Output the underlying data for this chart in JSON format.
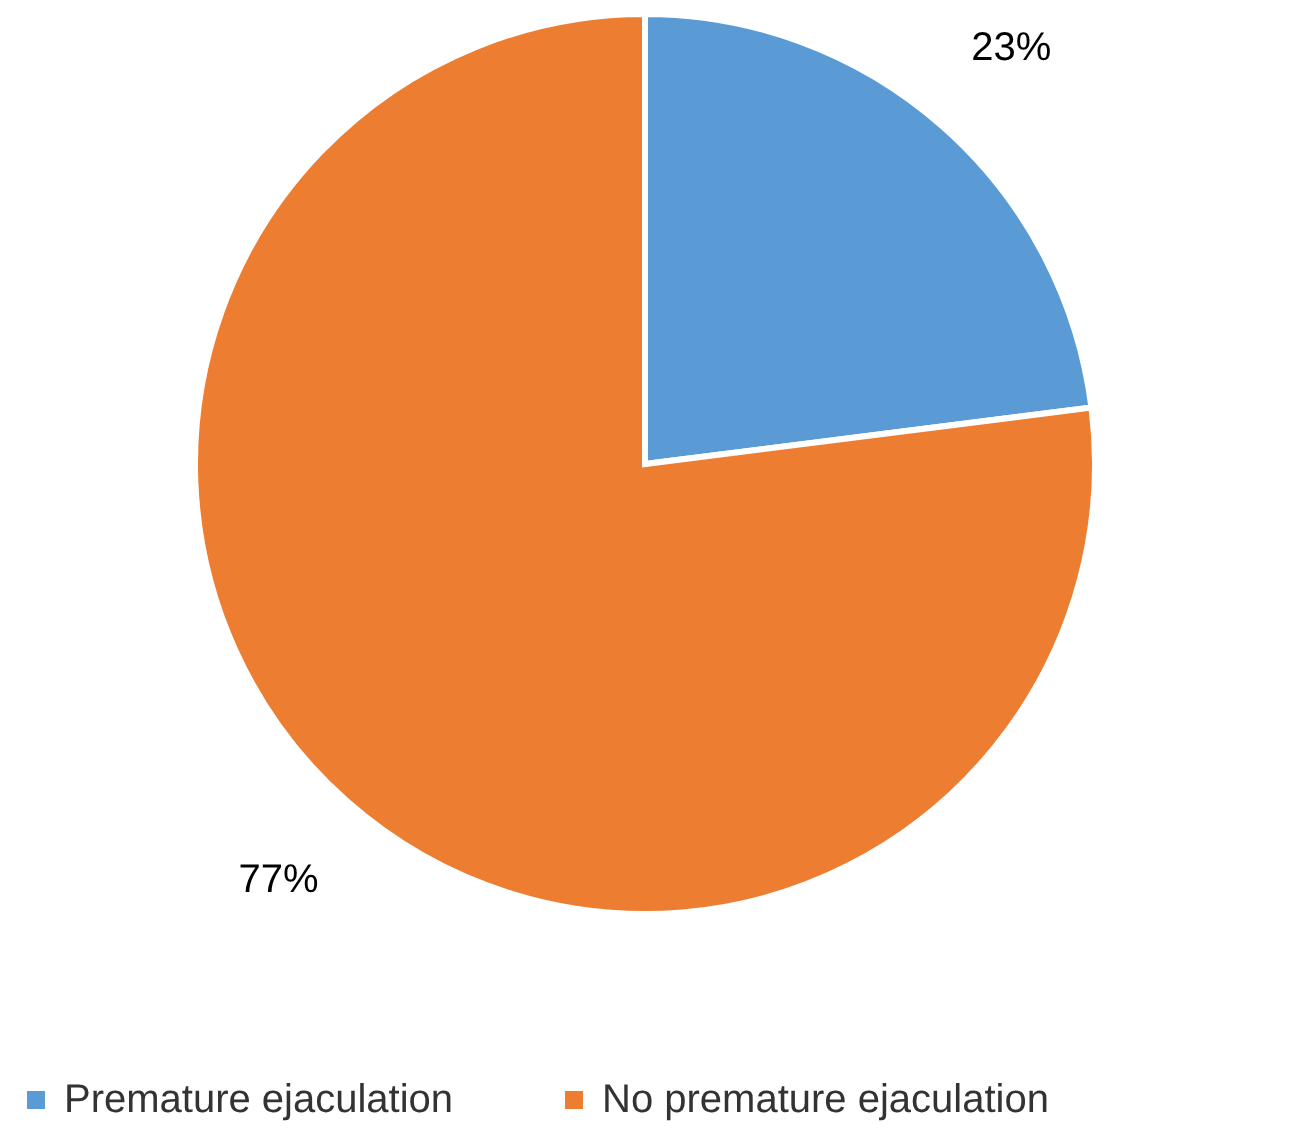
{
  "chart_data": {
    "type": "pie",
    "categories": [
      "Premature ejaculation",
      "No premature ejaculation"
    ],
    "values": [
      23,
      77
    ],
    "colors": [
      "#5b9bd5",
      "#ed7d31"
    ],
    "value_labels": [
      "23%",
      "77%"
    ],
    "legend": "bottom"
  }
}
